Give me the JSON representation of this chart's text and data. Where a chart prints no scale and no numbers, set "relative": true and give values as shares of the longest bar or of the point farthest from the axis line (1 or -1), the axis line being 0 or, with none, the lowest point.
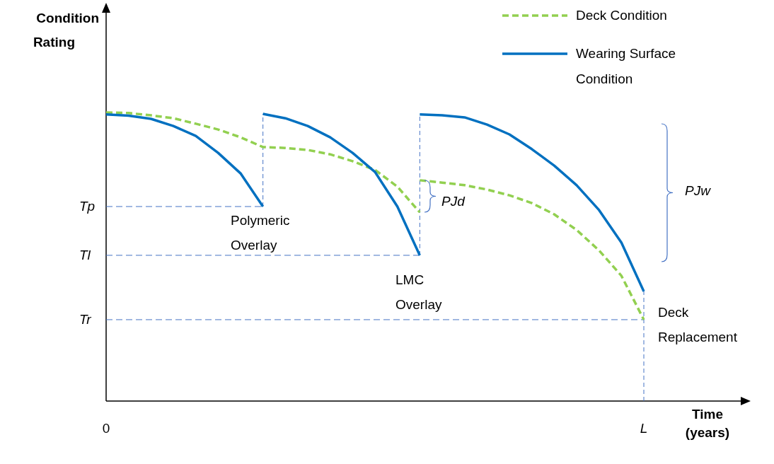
{
  "chart_data": {
    "type": "line",
    "relative": true,
    "xlabel": "Time (years)",
    "ylabel": "Condition Rating",
    "categories": [
      "0",
      null,
      null,
      null,
      null,
      null,
      null,
      null,
      null,
      null,
      null,
      null,
      null,
      null,
      null,
      null,
      null,
      null,
      null,
      null,
      null,
      null,
      null,
      null,
      "L"
    ],
    "series": [
      {
        "name": "Deck Condition",
        "color": "#92d050",
        "line_style": "dashed",
        "values": [
          1.0,
          0.998,
          0.99,
          0.98,
          0.961,
          0.941,
          0.914,
          0.88,
          0.877,
          0.87,
          0.855,
          0.831,
          0.801,
          0.743,
          0.654,
          null,
          null,
          null,
          null,
          null,
          null,
          null,
          null,
          null,
          null
        ]
      },
      {
        "color": "#92d050",
        "line_style": "dashed",
        "values": [
          null,
          null,
          null,
          null,
          null,
          null,
          null,
          null,
          null,
          null,
          null,
          null,
          null,
          null,
          0.765,
          0.757,
          0.748,
          0.733,
          0.713,
          0.686,
          0.647,
          0.593,
          0.522,
          0.434,
          0.282
        ]
      },
      {
        "name": "Wearing Surface Condition",
        "color": "#0070c0",
        "line_style": "solid",
        "values": [
          0.993,
          0.989,
          0.978,
          0.953,
          0.919,
          0.86,
          0.789,
          0.674,
          null,
          null,
          null,
          null,
          null,
          null,
          null,
          null,
          null,
          null,
          null,
          null,
          null,
          null,
          null,
          null,
          null
        ]
      },
      {
        "color": "#0070c0",
        "line_style": "solid",
        "values": [
          null,
          null,
          null,
          null,
          null,
          null,
          null,
          0.995,
          0.98,
          0.953,
          0.914,
          0.86,
          0.794,
          0.674,
          0.505,
          null,
          null,
          null,
          null,
          null,
          null,
          null,
          null,
          null,
          null
        ]
      },
      {
        "color": "#0070c0",
        "line_style": "solid",
        "values": [
          null,
          null,
          null,
          null,
          null,
          null,
          null,
          null,
          null,
          null,
          null,
          null,
          null,
          null,
          0.993,
          0.99,
          0.983,
          0.958,
          0.924,
          0.873,
          0.816,
          0.748,
          0.662,
          0.549,
          0.38
        ]
      }
    ],
    "ref_lines": [
      {
        "axis": "y",
        "value": 0.674,
        "label": "Tp",
        "color": "#4472c4",
        "line_style": "dashed"
      },
      {
        "axis": "y",
        "value": 0.505,
        "label": "Tl",
        "color": "#4472c4",
        "line_style": "dashed"
      },
      {
        "axis": "y",
        "value": 0.282,
        "label": "Tr",
        "color": "#4472c4",
        "line_style": "dashed"
      }
    ],
    "annotations": [
      "Polymeric Overlay",
      "LMC Overlay",
      "Deck Replacement",
      "PJd",
      "PJw"
    ],
    "legend": "top right"
  }
}
